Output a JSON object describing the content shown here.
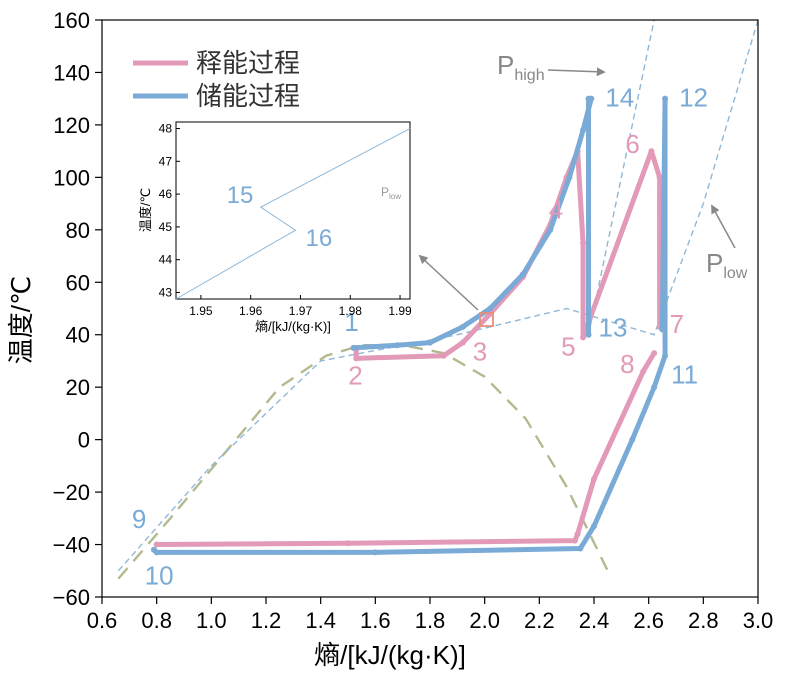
{
  "chart_data": {
    "type": "line",
    "xlabel": "熵/[kJ/(kg·K)]",
    "ylabel": "温度/℃",
    "xlim": [
      0.6,
      3.0
    ],
    "ylim": [
      -60,
      160
    ],
    "xticks": [
      "0.6",
      "0.8",
      "1.0",
      "1.2",
      "1.4",
      "1.6",
      "1.8",
      "2.0",
      "2.2",
      "2.4",
      "2.6",
      "2.8",
      "3.0"
    ],
    "yticks": [
      "−60",
      "−40",
      "−20",
      "0",
      "20",
      "40",
      "60",
      "80",
      "100",
      "120",
      "140",
      "160"
    ],
    "legend": [
      {
        "name": "释能过程",
        "color": "#e29ab8"
      },
      {
        "name": "储能过程",
        "color": "#7aaad6"
      }
    ],
    "colors": {
      "release": "#e29ab8",
      "storage": "#7aaad6",
      "dome": "#b5b98f",
      "isobar": "#8fb8d8",
      "annotation": "#888888"
    },
    "series": [
      {
        "key": "release",
        "color": "#e29ab8",
        "x": [
          0.8,
          1.5,
          2.33,
          2.34,
          2.4,
          2.58,
          2.62
        ],
        "y": [
          -40,
          -39.5,
          -38.5,
          -36,
          -15,
          26,
          33
        ]
      },
      {
        "key": "release-upper",
        "color": "#e29ab8",
        "x": [
          1.53,
          1.53,
          1.85,
          1.92,
          2.02,
          2.14,
          2.24,
          2.3,
          2.34,
          2.36,
          2.36,
          2.61,
          2.64,
          2.64
        ],
        "y": [
          35,
          31,
          32,
          37,
          48,
          62,
          82,
          100,
          110,
          75,
          39,
          110,
          100,
          43
        ]
      },
      {
        "key": "storage",
        "color": "#7aaad6",
        "x": [
          0.79,
          0.8,
          1.6,
          2.35,
          2.4,
          2.54,
          2.62,
          2.66,
          2.66,
          2.65
        ],
        "y": [
          -42,
          -43,
          -43,
          -41.5,
          -33,
          0,
          20,
          32,
          130,
          42
        ]
      },
      {
        "key": "storage-upper",
        "color": "#7aaad6",
        "x": [
          1.52,
          1.68,
          1.8,
          1.92,
          2.02,
          2.14,
          2.24,
          2.31,
          2.36,
          2.39,
          2.38,
          2.38
        ],
        "y": [
          35,
          36,
          37,
          43,
          50,
          63,
          80,
          100,
          118,
          130,
          130,
          40
        ]
      }
    ],
    "point_labels": [
      {
        "text": "1",
        "series": "storage",
        "x": 1.53,
        "y": 36
      },
      {
        "text": "2",
        "series": "release",
        "x": 1.53,
        "y": 31
      },
      {
        "text": "3",
        "series": "release",
        "x": 1.92,
        "y": 37
      },
      {
        "text": "4",
        "series": "release",
        "x": 2.33,
        "y": 85
      },
      {
        "text": "5",
        "series": "release",
        "x": 2.36,
        "y": 39
      },
      {
        "text": "6",
        "series": "release",
        "x": 2.61,
        "y": 110
      },
      {
        "text": "7",
        "series": "release",
        "x": 2.64,
        "y": 43
      },
      {
        "text": "8",
        "series": "release",
        "x": 2.62,
        "y": 33
      },
      {
        "text": "9",
        "series": "storage",
        "x": 0.79,
        "y": -42
      },
      {
        "text": "10",
        "series": "storage",
        "x": 0.8,
        "y": -43
      },
      {
        "text": "11",
        "series": "storage",
        "x": 2.66,
        "y": 32
      },
      {
        "text": "12",
        "series": "storage",
        "x": 2.66,
        "y": 130
      },
      {
        "text": "13",
        "series": "storage",
        "x": 2.38,
        "y": 40
      },
      {
        "text": "14",
        "series": "storage",
        "x": 2.39,
        "y": 130
      }
    ],
    "isobar_labels": {
      "high": {
        "main": "P",
        "sub": "high"
      },
      "low": {
        "main": "P",
        "sub": "low"
      }
    },
    "inset": {
      "xlabel": "熵/[kJ/(kg·K)]",
      "ylabel": "温度/℃",
      "xlim": [
        1.945,
        1.992
      ],
      "ylim": [
        42.8,
        48.2
      ],
      "xticks": [
        "1.95",
        "1.96",
        "1.97",
        "1.98",
        "1.99"
      ],
      "yticks": [
        "43",
        "44",
        "45",
        "46",
        "47",
        "48"
      ],
      "line_x": [
        1.945,
        1.969,
        1.962,
        1.992
      ],
      "line_y": [
        42.8,
        44.9,
        45.6,
        48.0
      ],
      "point_labels": [
        {
          "text": "15",
          "x": 1.962,
          "y": 45.6
        },
        {
          "text": "16",
          "x": 1.969,
          "y": 44.9
        }
      ],
      "plow": {
        "main": "P",
        "sub": "low"
      }
    }
  }
}
